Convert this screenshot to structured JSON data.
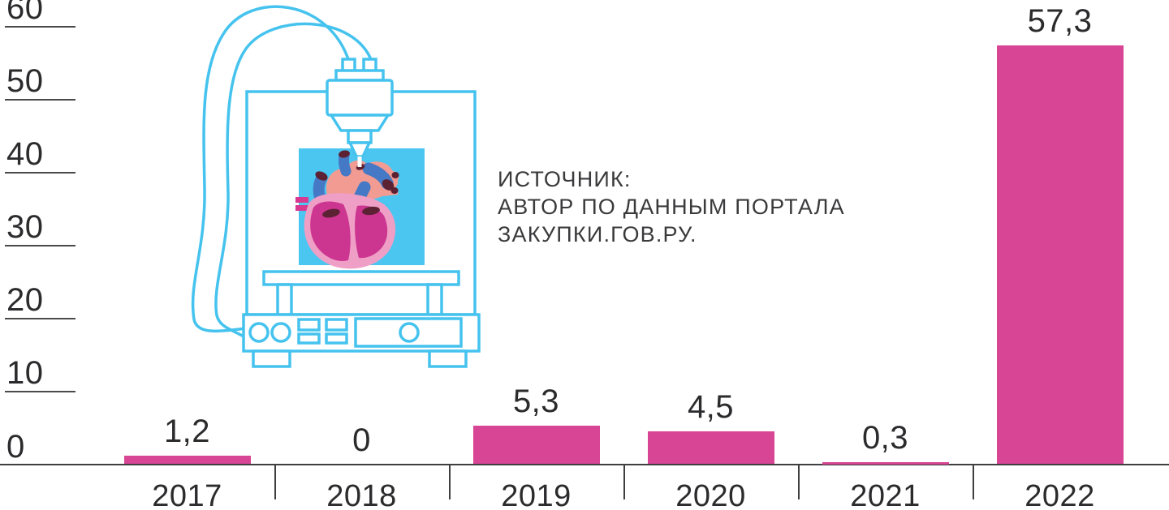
{
  "chart_data": {
    "type": "bar",
    "title": "",
    "categories": [
      "2017",
      "2018",
      "2019",
      "2020",
      "2021",
      "2022"
    ],
    "values": [
      1.2,
      0,
      5.3,
      4.5,
      0.3,
      57.3
    ],
    "value_labels": [
      "1,2",
      "0",
      "5,3",
      "4,5",
      "0,3",
      "57,3"
    ],
    "yticks": [
      0,
      10,
      20,
      30,
      40,
      50,
      60
    ],
    "ylim": [
      0,
      60
    ],
    "xlabel": "",
    "ylabel": "",
    "legend": "none",
    "grid": "short y-tick stubs at left edge only",
    "bar_color": "#D84594",
    "axis_color": "#3F3F41",
    "tick_stub_color": "#4A4A4C",
    "label_color": "#2B2B2D"
  },
  "source_note": {
    "lines": [
      "ИСТОЧНИК:",
      "АВТОР ПО ДАННЫМ ПОРТАЛА",
      "ЗАКУПКИ.ГОВ.РУ."
    ],
    "color": "#3A3A3C"
  },
  "illustration": {
    "name": "3d-printer-printing-human-heart",
    "outline_color": "#45C3EE",
    "build_area_color": "#4AC6F0",
    "heart_colors": {
      "salmon": "#F29B92",
      "vessel_blue": "#4679C5",
      "opening_dark": "#5C2133",
      "body_magenta": "#CC3590",
      "rim_pink": "#EF9EC6",
      "stub_magenta": "#D8388F"
    }
  }
}
